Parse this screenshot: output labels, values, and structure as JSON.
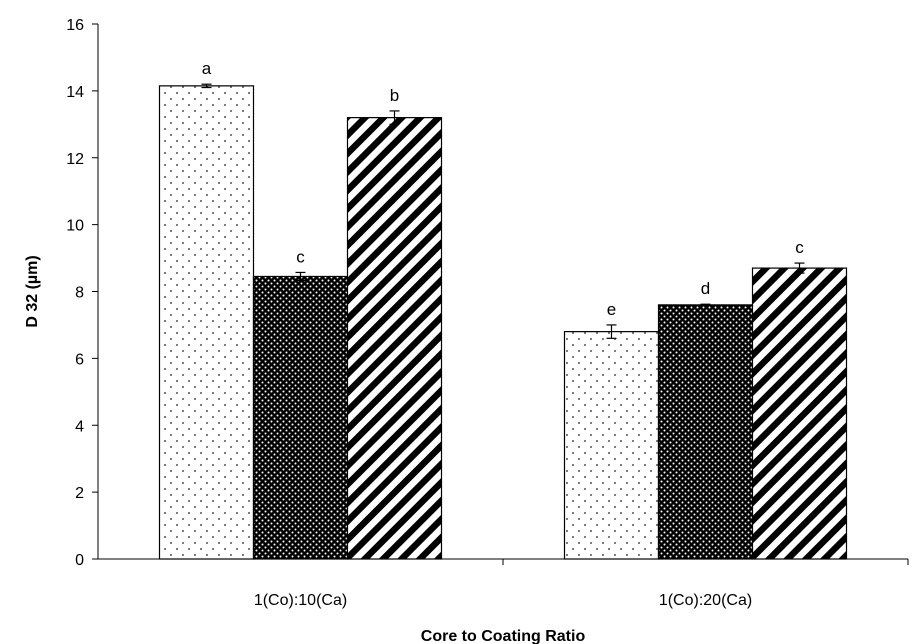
{
  "chart_data": {
    "type": "bar",
    "title": "",
    "xlabel": "Core to Coating Ratio",
    "ylabel": "D 32 (µm)",
    "ylim": [
      0,
      16
    ],
    "yticks": [
      0,
      2,
      4,
      6,
      8,
      10,
      12,
      14,
      16
    ],
    "categories": [
      "1(Co):10(Ca)",
      "1(Co):20(Ca)"
    ],
    "grid": false,
    "legend": "none",
    "series": [
      {
        "pattern": "sparse-dots",
        "values": [
          14.15,
          6.8
        ],
        "errors": [
          0.05,
          0.2
        ],
        "letters": [
          "a",
          "e"
        ]
      },
      {
        "pattern": "dense-dots-dark",
        "values": [
          8.45,
          7.6
        ],
        "errors": [
          0.12,
          0.02
        ],
        "letters": [
          "c",
          "d"
        ]
      },
      {
        "pattern": "diagonal-stripes",
        "values": [
          13.2,
          8.7
        ],
        "errors": [
          0.2,
          0.15
        ],
        "letters": [
          "b",
          "c"
        ]
      }
    ]
  }
}
